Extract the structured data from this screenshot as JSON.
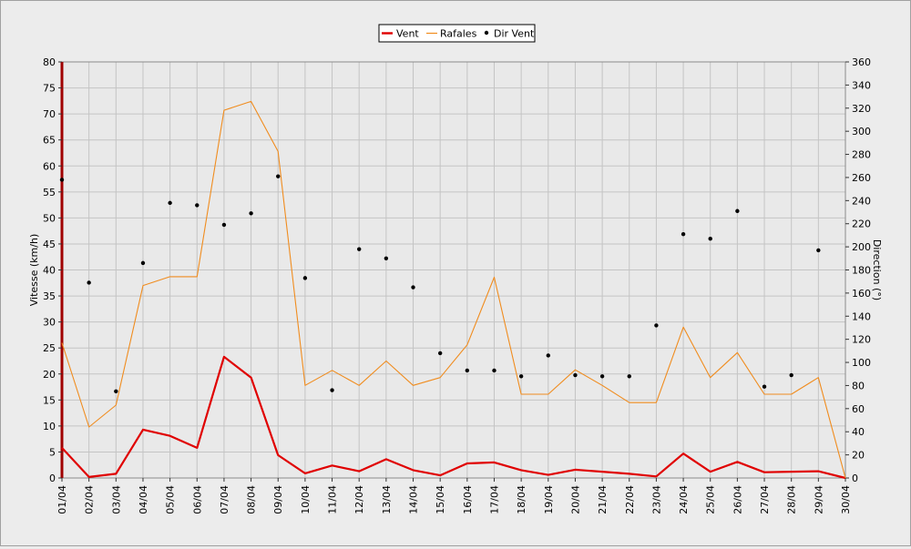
{
  "chart_data": {
    "type": "line",
    "legend_position": "top-center",
    "grid": true,
    "categories": [
      "01/04",
      "02/04",
      "03/04",
      "04/04",
      "05/04",
      "06/04",
      "07/04",
      "08/04",
      "09/04",
      "10/04",
      "11/04",
      "12/04",
      "13/04",
      "14/04",
      "15/04",
      "16/04",
      "17/04",
      "18/04",
      "19/04",
      "20/04",
      "21/04",
      "22/04",
      "23/04",
      "24/04",
      "25/04",
      "26/04",
      "27/04",
      "28/04",
      "29/04",
      "30/04"
    ],
    "ylabel_left": "Vitesse (km/h)",
    "ylabel_right": "Direction (°)",
    "ylim_left": [
      0,
      80
    ],
    "ylim_right": [
      0,
      360
    ],
    "yticks_left": [
      0,
      5,
      10,
      15,
      20,
      25,
      30,
      35,
      40,
      45,
      50,
      55,
      60,
      65,
      70,
      75,
      80
    ],
    "yticks_right": [
      0,
      20,
      40,
      60,
      80,
      100,
      120,
      140,
      160,
      180,
      200,
      220,
      240,
      260,
      280,
      300,
      320,
      340,
      360
    ],
    "series": [
      {
        "name": "Vent",
        "color": "#e00000",
        "axis": "left",
        "style": "line",
        "values": [
          5.8,
          0.2,
          0.8,
          9.3,
          8.1,
          5.8,
          23.3,
          19.3,
          4.4,
          0.9,
          2.4,
          1.3,
          3.6,
          1.5,
          0.5,
          2.8,
          3.0,
          1.5,
          0.6,
          1.6,
          1.2,
          0.8,
          0.3,
          4.7,
          1.2,
          3.1,
          1.1,
          1.2,
          1.3,
          0.0
        ]
      },
      {
        "name": "Rafales",
        "color": "#f08c1e",
        "axis": "left",
        "style": "line",
        "values": [
          26.0,
          9.8,
          14.0,
          37.0,
          38.7,
          38.7,
          70.7,
          72.4,
          62.8,
          17.8,
          20.7,
          17.8,
          22.5,
          17.8,
          19.3,
          25.6,
          38.6,
          16.1,
          16.1,
          20.8,
          17.8,
          14.5,
          14.5,
          29.0,
          19.3,
          24.1,
          16.1,
          16.1,
          19.3,
          0.0
        ]
      },
      {
        "name": "Dir Vent",
        "color": "#000000",
        "axis": "right",
        "style": "points",
        "values": [
          258,
          169,
          75,
          186,
          238,
          236,
          219,
          229,
          261,
          173,
          76,
          198,
          190,
          165,
          108,
          93,
          93,
          88,
          106,
          89,
          88,
          88,
          132,
          211,
          207,
          231,
          79,
          89,
          197,
          null
        ]
      }
    ]
  }
}
